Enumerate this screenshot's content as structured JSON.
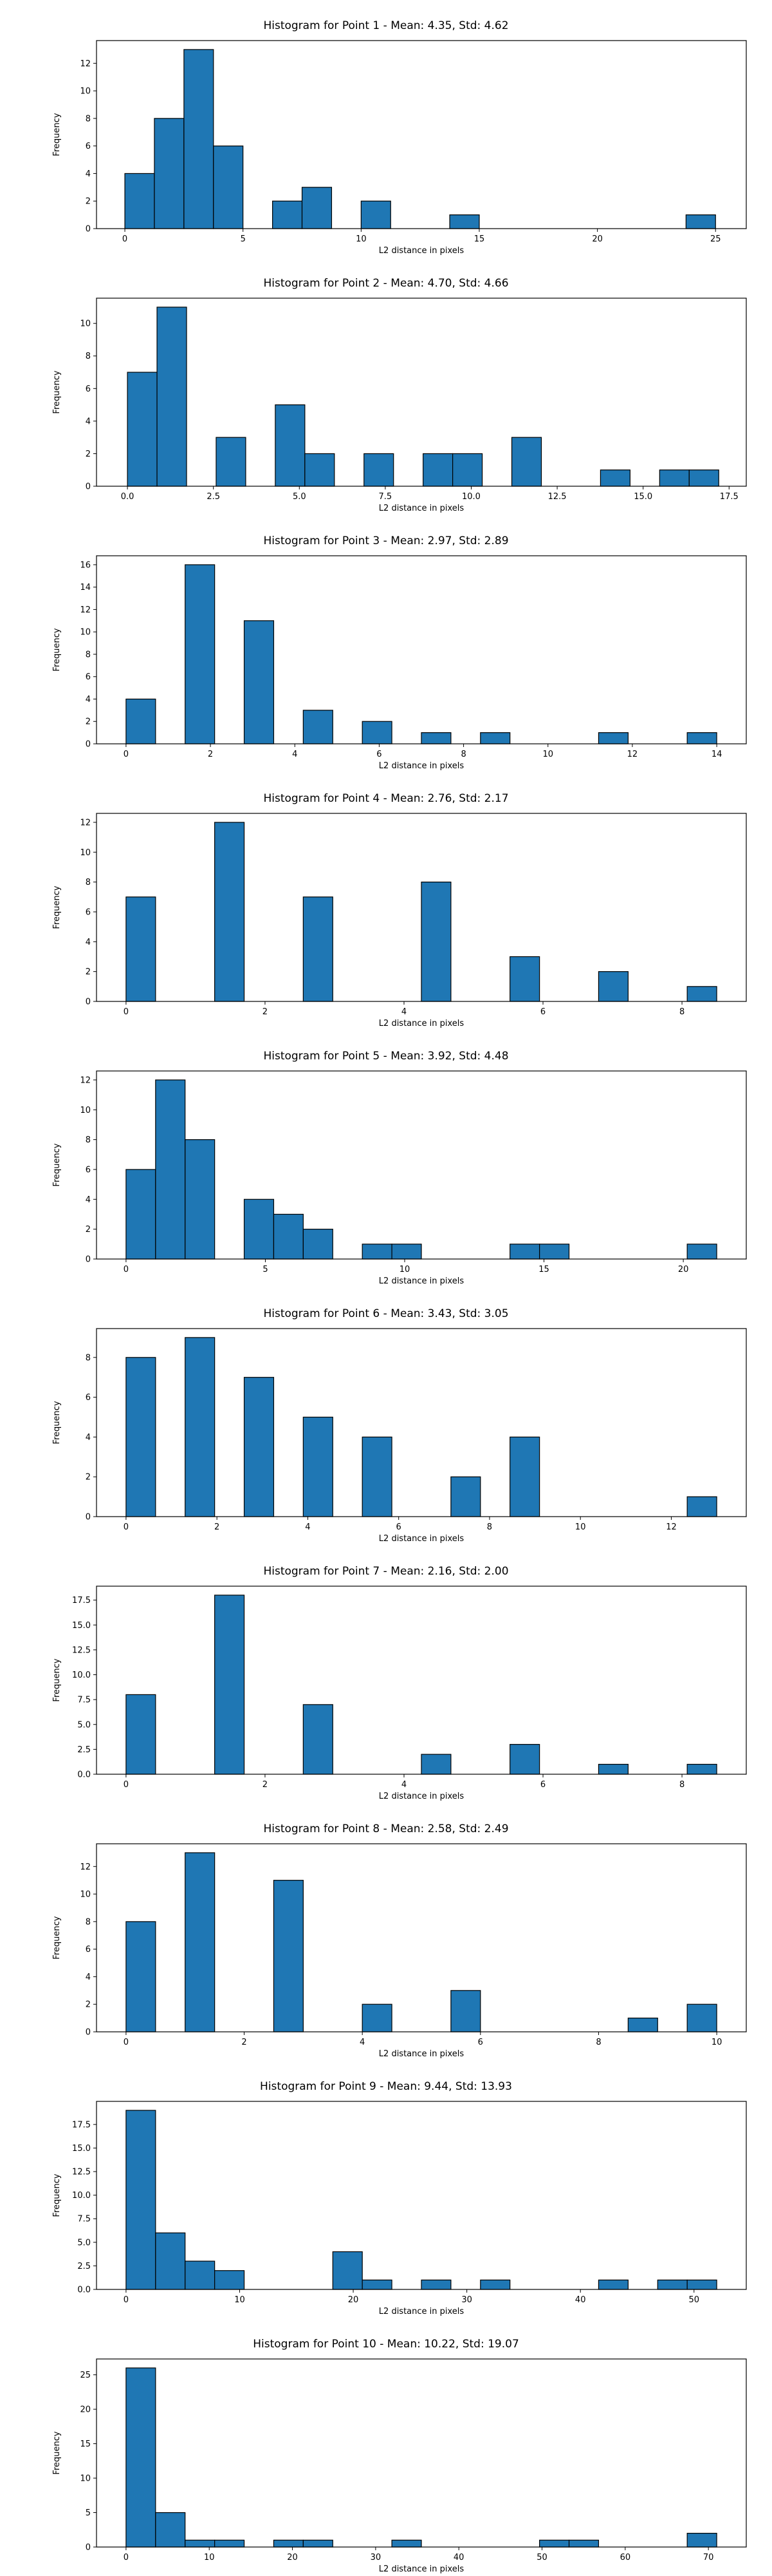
{
  "colors": {
    "bar_fill": "#1f77b4",
    "bar_edge": "#000000",
    "axis": "#000000"
  },
  "chart_data": [
    {
      "type": "bar",
      "title": "Histogram for Point 1 - Mean: 4.35, Std: 4.62",
      "xlabel": "L2 distance in pixels",
      "ylabel": "Frequency",
      "xlim": [
        -1.2,
        26.3
      ],
      "ylim": [
        0,
        13.65
      ],
      "xticks": [
        0,
        5,
        10,
        15,
        20,
        25
      ],
      "xtick_labels": [
        "0",
        "5",
        "10",
        "15",
        "20",
        "25"
      ],
      "yticks": [
        0,
        2,
        4,
        6,
        8,
        10,
        12
      ],
      "ytick_labels": [
        "0",
        "2",
        "4",
        "6",
        "8",
        "10",
        "12"
      ],
      "bin_edges": [
        0,
        1.25,
        2.5,
        3.75,
        5,
        6.25,
        7.5,
        8.75,
        10,
        11.25,
        12.5,
        13.75,
        15,
        16.25,
        17.5,
        18.75,
        20,
        21.25,
        22.5,
        23.75,
        25
      ],
      "values": [
        4,
        8,
        13,
        6,
        0,
        2,
        3,
        0,
        2,
        0,
        0,
        1,
        0,
        0,
        0,
        0,
        0,
        0,
        0,
        1
      ]
    },
    {
      "type": "bar",
      "title": "Histogram for Point 2 - Mean: 4.70, Std: 4.66",
      "xlabel": "L2 distance in pixels",
      "ylabel": "Frequency",
      "xlim": [
        -0.9,
        18.0
      ],
      "ylim": [
        0,
        11.55
      ],
      "xticks": [
        0,
        2.5,
        5,
        7.5,
        10,
        12.5,
        15,
        17.5
      ],
      "xtick_labels": [
        "0.0",
        "2.5",
        "5.0",
        "7.5",
        "10.0",
        "12.5",
        "15.0",
        "17.5"
      ],
      "yticks": [
        0,
        2,
        4,
        6,
        8,
        10
      ],
      "ytick_labels": [
        "0",
        "2",
        "4",
        "6",
        "8",
        "10"
      ],
      "bin_edges": [
        0,
        0.86,
        1.72,
        2.58,
        3.44,
        4.3,
        5.16,
        6.02,
        6.88,
        7.74,
        8.6,
        9.46,
        10.32,
        11.18,
        12.04,
        12.9,
        13.76,
        14.62,
        15.48,
        16.34,
        17.2
      ],
      "values": [
        7,
        11,
        0,
        3,
        0,
        5,
        2,
        0,
        2,
        0,
        2,
        2,
        0,
        3,
        0,
        0,
        1,
        0,
        1,
        1
      ]
    },
    {
      "type": "bar",
      "title": "Histogram for Point 3 - Mean: 2.97, Std: 2.89",
      "xlabel": "L2 distance in pixels",
      "ylabel": "Frequency",
      "xlim": [
        -0.7,
        14.7
      ],
      "ylim": [
        0,
        16.8
      ],
      "xticks": [
        0,
        2,
        4,
        6,
        8,
        10,
        12,
        14
      ],
      "xtick_labels": [
        "0",
        "2",
        "4",
        "6",
        "8",
        "10",
        "12",
        "14"
      ],
      "yticks": [
        0,
        2,
        4,
        6,
        8,
        10,
        12,
        14,
        16
      ],
      "ytick_labels": [
        "0",
        "2",
        "4",
        "6",
        "8",
        "10",
        "12",
        "14",
        "16"
      ],
      "bin_edges": [
        0,
        0.7,
        1.4,
        2.1,
        2.8,
        3.5,
        4.2,
        4.9,
        5.6,
        6.3,
        7.0,
        7.7,
        8.4,
        9.1,
        9.8,
        10.5,
        11.2,
        11.9,
        12.6,
        13.3,
        14.0
      ],
      "values": [
        4,
        0,
        16,
        0,
        11,
        0,
        3,
        0,
        2,
        0,
        1,
        0,
        1,
        0,
        0,
        0,
        1,
        0,
        0,
        1
      ]
    },
    {
      "type": "bar",
      "title": "Histogram for Point 4 - Mean: 2.76, Std: 2.17",
      "xlabel": "L2 distance in pixels",
      "ylabel": "Frequency",
      "xlim": [
        -0.425,
        8.925
      ],
      "ylim": [
        0,
        12.6
      ],
      "xticks": [
        0,
        2,
        4,
        6,
        8
      ],
      "xtick_labels": [
        "0",
        "2",
        "4",
        "6",
        "8"
      ],
      "yticks": [
        0,
        2,
        4,
        6,
        8,
        10,
        12
      ],
      "ytick_labels": [
        "0",
        "2",
        "4",
        "6",
        "8",
        "10",
        "12"
      ],
      "bin_edges": [
        0,
        0.425,
        0.85,
        1.275,
        1.7,
        2.125,
        2.55,
        2.975,
        3.4,
        3.825,
        4.25,
        4.675,
        5.1,
        5.525,
        5.95,
        6.375,
        6.8,
        7.225,
        7.65,
        8.075,
        8.5
      ],
      "values": [
        7,
        0,
        0,
        12,
        0,
        0,
        7,
        0,
        0,
        0,
        8,
        0,
        0,
        3,
        0,
        0,
        2,
        0,
        0,
        1
      ]
    },
    {
      "type": "bar",
      "title": "Histogram for Point 5 - Mean: 3.92, Std: 4.48",
      "xlabel": "L2 distance in pixels",
      "ylabel": "Frequency",
      "xlim": [
        -1.06,
        22.26
      ],
      "ylim": [
        0,
        12.6
      ],
      "xticks": [
        0,
        5,
        10,
        15,
        20
      ],
      "xtick_labels": [
        "0",
        "5",
        "10",
        "15",
        "20"
      ],
      "yticks": [
        0,
        2,
        4,
        6,
        8,
        10,
        12
      ],
      "ytick_labels": [
        "0",
        "2",
        "4",
        "6",
        "8",
        "10",
        "12"
      ],
      "bin_edges": [
        0,
        1.06,
        2.12,
        3.18,
        4.24,
        5.3,
        6.36,
        7.42,
        8.48,
        9.54,
        10.6,
        11.66,
        12.72,
        13.78,
        14.84,
        15.9,
        16.96,
        18.02,
        19.08,
        20.14,
        21.2
      ],
      "values": [
        6,
        12,
        8,
        0,
        4,
        3,
        2,
        0,
        1,
        1,
        0,
        0,
        0,
        1,
        1,
        0,
        0,
        0,
        0,
        1
      ]
    },
    {
      "type": "bar",
      "title": "Histogram for Point 6 - Mean: 3.43, Std: 3.05",
      "xlabel": "L2 distance in pixels",
      "ylabel": "Frequency",
      "xlim": [
        -0.65,
        13.65
      ],
      "ylim": [
        0,
        9.45
      ],
      "xticks": [
        0,
        2,
        4,
        6,
        8,
        10,
        12
      ],
      "xtick_labels": [
        "0",
        "2",
        "4",
        "6",
        "8",
        "10",
        "12"
      ],
      "yticks": [
        0,
        2,
        4,
        6,
        8
      ],
      "ytick_labels": [
        "0",
        "2",
        "4",
        "6",
        "8"
      ],
      "bin_edges": [
        0,
        0.65,
        1.3,
        1.95,
        2.6,
        3.25,
        3.9,
        4.55,
        5.2,
        5.85,
        6.5,
        7.15,
        7.8,
        8.45,
        9.1,
        9.75,
        10.4,
        11.05,
        11.7,
        12.35,
        13.0
      ],
      "values": [
        8,
        0,
        9,
        0,
        7,
        0,
        5,
        0,
        4,
        0,
        0,
        2,
        0,
        4,
        0,
        0,
        0,
        0,
        0,
        1
      ]
    },
    {
      "type": "bar",
      "title": "Histogram for Point 7 - Mean: 2.16, Std: 2.00",
      "xlabel": "L2 distance in pixels",
      "ylabel": "Frequency",
      "xlim": [
        -0.425,
        8.925
      ],
      "ylim": [
        0,
        18.9
      ],
      "xticks": [
        0,
        2,
        4,
        6,
        8
      ],
      "xtick_labels": [
        "0",
        "2",
        "4",
        "6",
        "8"
      ],
      "yticks": [
        0,
        2.5,
        5,
        7.5,
        10,
        12.5,
        15,
        17.5
      ],
      "ytick_labels": [
        "0.0",
        "2.5",
        "5.0",
        "7.5",
        "10.0",
        "12.5",
        "15.0",
        "17.5"
      ],
      "bin_edges": [
        0,
        0.425,
        0.85,
        1.275,
        1.7,
        2.125,
        2.55,
        2.975,
        3.4,
        3.825,
        4.25,
        4.675,
        5.1,
        5.525,
        5.95,
        6.375,
        6.8,
        7.225,
        7.65,
        8.075,
        8.5
      ],
      "values": [
        8,
        0,
        0,
        18,
        0,
        0,
        7,
        0,
        0,
        0,
        2,
        0,
        0,
        3,
        0,
        0,
        1,
        0,
        0,
        1
      ]
    },
    {
      "type": "bar",
      "title": "Histogram for Point 8 - Mean: 2.58, Std: 2.49",
      "xlabel": "L2 distance in pixels",
      "ylabel": "Frequency",
      "xlim": [
        -0.5,
        10.5
      ],
      "ylim": [
        0,
        13.65
      ],
      "xticks": [
        0,
        2,
        4,
        6,
        8,
        10
      ],
      "xtick_labels": [
        "0",
        "2",
        "4",
        "6",
        "8",
        "10"
      ],
      "yticks": [
        0,
        2,
        4,
        6,
        8,
        10,
        12
      ],
      "ytick_labels": [
        "0",
        "2",
        "4",
        "6",
        "8",
        "10",
        "12"
      ],
      "bin_edges": [
        0,
        0.5,
        1,
        1.5,
        2,
        2.5,
        3,
        3.5,
        4,
        4.5,
        5,
        5.5,
        6,
        6.5,
        7,
        7.5,
        8,
        8.5,
        9,
        9.5,
        10
      ],
      "values": [
        8,
        0,
        13,
        0,
        0,
        11,
        0,
        0,
        2,
        0,
        0,
        3,
        0,
        0,
        0,
        0,
        0,
        1,
        0,
        2
      ]
    },
    {
      "type": "bar",
      "title": "Histogram for Point 9 - Mean: 9.44, Std: 13.93",
      "xlabel": "L2 distance in pixels",
      "ylabel": "Frequency",
      "xlim": [
        -2.6,
        54.6
      ],
      "ylim": [
        0,
        19.95
      ],
      "xticks": [
        0,
        10,
        20,
        30,
        40,
        50
      ],
      "xtick_labels": [
        "0",
        "10",
        "20",
        "30",
        "40",
        "50"
      ],
      "yticks": [
        0,
        2.5,
        5,
        7.5,
        10,
        12.5,
        15,
        17.5
      ],
      "ytick_labels": [
        "0.0",
        "2.5",
        "5.0",
        "7.5",
        "10.0",
        "12.5",
        "15.0",
        "17.5"
      ],
      "bin_edges": [
        0,
        2.6,
        5.2,
        7.8,
        10.4,
        13,
        15.6,
        18.2,
        20.8,
        23.4,
        26,
        28.6,
        31.2,
        33.8,
        36.4,
        39,
        41.6,
        44.2,
        46.8,
        49.4,
        52
      ],
      "values": [
        19,
        6,
        3,
        2,
        0,
        0,
        0,
        4,
        1,
        0,
        1,
        0,
        1,
        0,
        0,
        0,
        1,
        0,
        1,
        1
      ]
    },
    {
      "type": "bar",
      "title": "Histogram for Point 10 - Mean: 10.22, Std: 19.07",
      "xlabel": "L2 distance in pixels",
      "ylabel": "Frequency",
      "xlim": [
        -3.55,
        74.55
      ],
      "ylim": [
        0,
        27.3
      ],
      "xticks": [
        0,
        10,
        20,
        30,
        40,
        50,
        60,
        70
      ],
      "xtick_labels": [
        "0",
        "10",
        "20",
        "30",
        "40",
        "50",
        "60",
        "70"
      ],
      "yticks": [
        0,
        5,
        10,
        15,
        20,
        25
      ],
      "ytick_labels": [
        "0",
        "5",
        "10",
        "15",
        "20",
        "25"
      ],
      "bin_edges": [
        0,
        3.55,
        7.1,
        10.65,
        14.2,
        17.75,
        21.3,
        24.85,
        28.4,
        31.95,
        35.5,
        39.05,
        42.6,
        46.15,
        49.7,
        53.25,
        56.8,
        60.35,
        63.9,
        67.45,
        71
      ],
      "values": [
        26,
        5,
        1,
        1,
        0,
        1,
        1,
        0,
        0,
        1,
        0,
        0,
        0,
        0,
        1,
        1,
        0,
        0,
        0,
        2
      ]
    }
  ]
}
